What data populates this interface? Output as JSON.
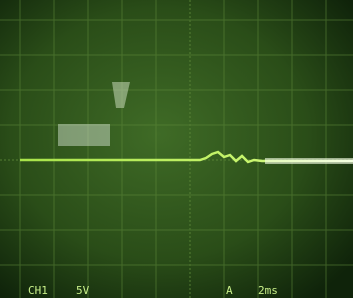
{
  "readout": {
    "channel": "CH1",
    "volts_per_div": "5V",
    "trigger": "A",
    "time_per_div": "2ms"
  }
}
